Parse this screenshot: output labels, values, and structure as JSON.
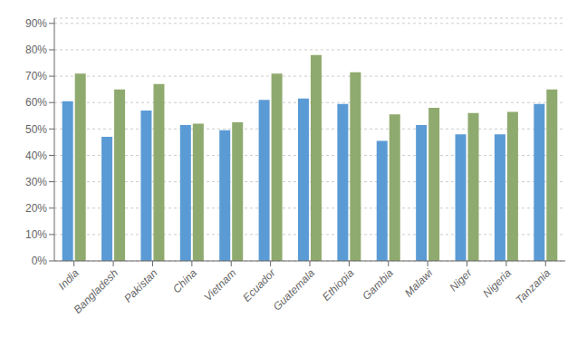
{
  "chart_data": {
    "type": "bar",
    "categories": [
      "India",
      "Bangladesh",
      "Pakistan",
      "China",
      "Vietnam",
      "Ecuador",
      "Guatemala",
      "Ethiopia",
      "Gambia",
      "Malawi",
      "Niger",
      "Nigeria",
      "Tanzania"
    ],
    "series": [
      {
        "color": "#5b9bd5",
        "values": [
          60.5,
          47.0,
          57.0,
          51.5,
          49.5,
          61.0,
          61.5,
          59.5,
          45.5,
          51.5,
          48.0,
          48.0,
          59.5
        ]
      },
      {
        "color": "#8faa6e",
        "values": [
          71.0,
          65.0,
          67.0,
          52.0,
          52.5,
          71.0,
          78.0,
          71.5,
          55.5,
          58.0,
          56.0,
          56.5,
          65.0
        ]
      }
    ],
    "ylim": [
      0,
      92
    ],
    "yticks": [
      {
        "value": 0,
        "label": "0%"
      },
      {
        "value": 10,
        "label": "10%"
      },
      {
        "value": 20,
        "label": "20%"
      },
      {
        "value": 30,
        "label": "30%"
      },
      {
        "value": 40,
        "label": "40%"
      },
      {
        "value": 50,
        "label": "50%"
      },
      {
        "value": 60,
        "label": "60%"
      },
      {
        "value": 70,
        "label": "70%"
      },
      {
        "value": 80,
        "label": "80%"
      },
      {
        "value": 90,
        "label": "90%"
      }
    ],
    "grid": true
  }
}
